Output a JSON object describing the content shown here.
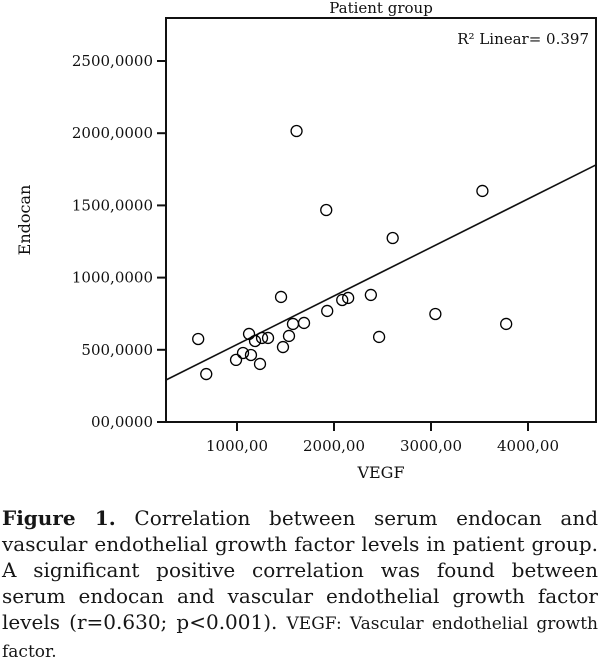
{
  "chart_data": {
    "type": "scatter",
    "title": "Patient group",
    "annotation": "R² Linear= 0.397",
    "r_squared": 0.397,
    "xlabel": "VEGF",
    "ylabel": "Endocan",
    "xlim": [
      270,
      4700
    ],
    "ylim": [
      0,
      2800
    ],
    "grid": false,
    "marker": "open-circle",
    "color": "#000000",
    "x_ticks": [
      {
        "value": 1000,
        "label": "1000,00"
      },
      {
        "value": 2000,
        "label": "2000,00"
      },
      {
        "value": 3000,
        "label": "3000,00"
      },
      {
        "value": 4000,
        "label": "4000,00"
      }
    ],
    "y_ticks": [
      {
        "value": 0,
        "label": "00,0000"
      },
      {
        "value": 500,
        "label": "500,0000"
      },
      {
        "value": 1000,
        "label": "1000,0000"
      },
      {
        "value": 1500,
        "label": "1500,0000"
      },
      {
        "value": 2000,
        "label": "2000,0000"
      },
      {
        "value": 2500,
        "label": "2500,0000"
      }
    ],
    "points": [
      [
        1614,
        2015
      ],
      [
        1920,
        1468
      ],
      [
        3530,
        1600
      ],
      [
        2605,
        1274
      ],
      [
        600,
        575
      ],
      [
        683,
        332
      ],
      [
        1454,
        866
      ],
      [
        1577,
        679
      ],
      [
        1691,
        686
      ],
      [
        1930,
        769
      ],
      [
        2085,
        845
      ],
      [
        2146,
        859
      ],
      [
        2380,
        880
      ],
      [
        2465,
        589
      ],
      [
        3045,
        748
      ],
      [
        3775,
        679
      ],
      [
        1124,
        610
      ],
      [
        1186,
        561
      ],
      [
        1258,
        582
      ],
      [
        1320,
        582
      ],
      [
        1062,
        478
      ],
      [
        1144,
        464
      ],
      [
        990,
        430
      ],
      [
        1237,
        402
      ],
      [
        1536,
        596
      ],
      [
        1474,
        519
      ]
    ],
    "regression_line": {
      "x1": 268,
      "y1": 291,
      "x2": 4700,
      "y2": 1780
    }
  },
  "caption": {
    "label": "Figure 1.",
    "body": "Correlation between serum endocan and vascular endothelial growth factor levels in patient group. A significant positive correlation was found between serum endocan and vascular endothelial growth factor levels (r=0.630; p<0.001).",
    "note": "VEGF: Vascular endothelial growth factor."
  }
}
